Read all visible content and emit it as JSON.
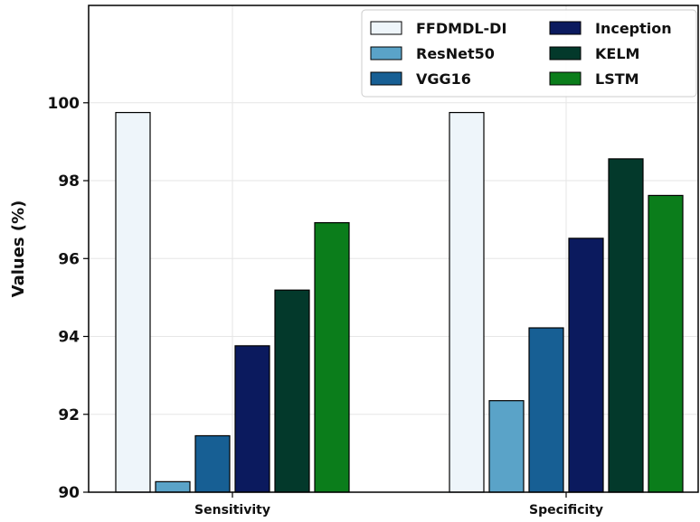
{
  "chart_data": {
    "type": "bar",
    "title": "",
    "xlabel": "",
    "ylabel": "Values (%)",
    "ylim": [
      90,
      102.5
    ],
    "yticks": [
      90,
      92,
      94,
      96,
      98,
      100
    ],
    "grid": true,
    "legend_position": "top-right",
    "categories": [
      "Sensitivity",
      "Specificity"
    ],
    "series": [
      {
        "name": "FFDMDL-DI",
        "color": "#eef5fa",
        "values": [
          99.75,
          99.75
        ]
      },
      {
        "name": "ResNet50",
        "color": "#5aa3c8",
        "values": [
          90.27,
          92.35
        ]
      },
      {
        "name": "VGG16",
        "color": "#175f94",
        "values": [
          91.45,
          94.22
        ]
      },
      {
        "name": "Inception",
        "color": "#0b1a5e",
        "values": [
          93.76,
          96.52
        ]
      },
      {
        "name": "KELM",
        "color": "#03392b",
        "values": [
          95.19,
          98.56
        ]
      },
      {
        "name": "LSTM",
        "color": "#0b7d1b",
        "values": [
          96.92,
          97.62
        ]
      }
    ]
  }
}
